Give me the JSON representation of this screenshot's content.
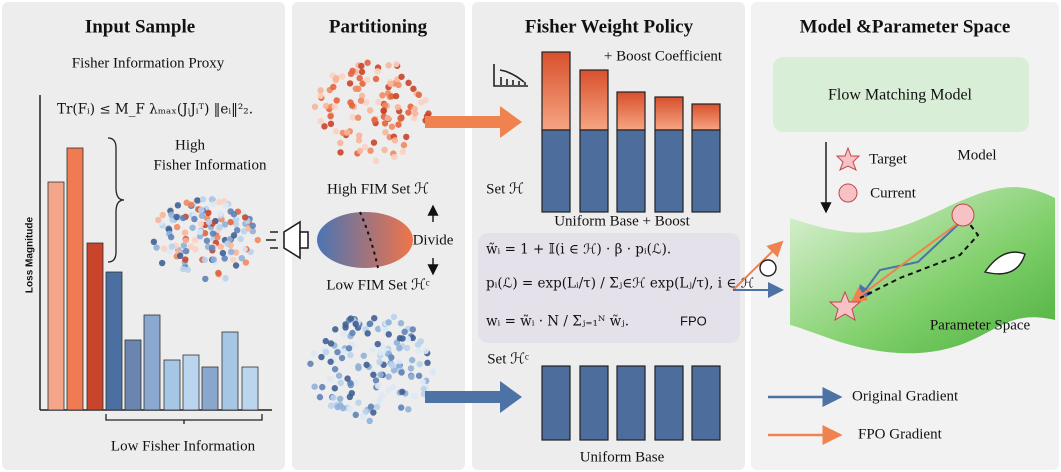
{
  "input_sample": {
    "title": "Input Sample",
    "subtitle": "Fisher Information Proxy",
    "formula": "Tr(Fᵢ) ≤ M_F λₘₐₓ(JᵢJᵢᵀ) ‖eᵢ‖²₂.",
    "high_label": [
      "High",
      "Fisher Information"
    ],
    "y_axis_label": "Loss Magnitude",
    "low_label": "Low Fisher Information"
  },
  "partitioning": {
    "title": "Partitioning",
    "high_set": "High FIM Set ℋ",
    "divide": "Divide",
    "low_set": "Low FIM Set ℋᶜ"
  },
  "fisher_weight_policy": {
    "title": "Fisher Weight Policy",
    "boost": "+ Boost Coefficient",
    "set_h": "Set ℋ",
    "top_caption": "Uniform Base + Boost",
    "formulas": [
      "w̃ᵢ = 1 + 𝕀(i ∈ ℋ) · β · pᵢ(ℒ).",
      "pᵢ(ℒ) = exp(Lᵢ/τ) / Σⱼ∈ℋ exp(Lⱼ/τ), i ∈ ℋ",
      "wᵢ = w̃ᵢ · N / Σⱼ₌₁ᴺ w̃ⱼ."
    ],
    "method": "FPO",
    "set_hc": "Set ℋᶜ",
    "bottom_caption": "Uniform Base"
  },
  "model_space": {
    "title": "Model &Parameter Space",
    "model_box": "Flow Matching Model",
    "model": "Model",
    "target": "Target",
    "current": "Current",
    "space": "Parameter Space",
    "legend": [
      "Original Gradient",
      "FPO Gradient"
    ]
  }
}
